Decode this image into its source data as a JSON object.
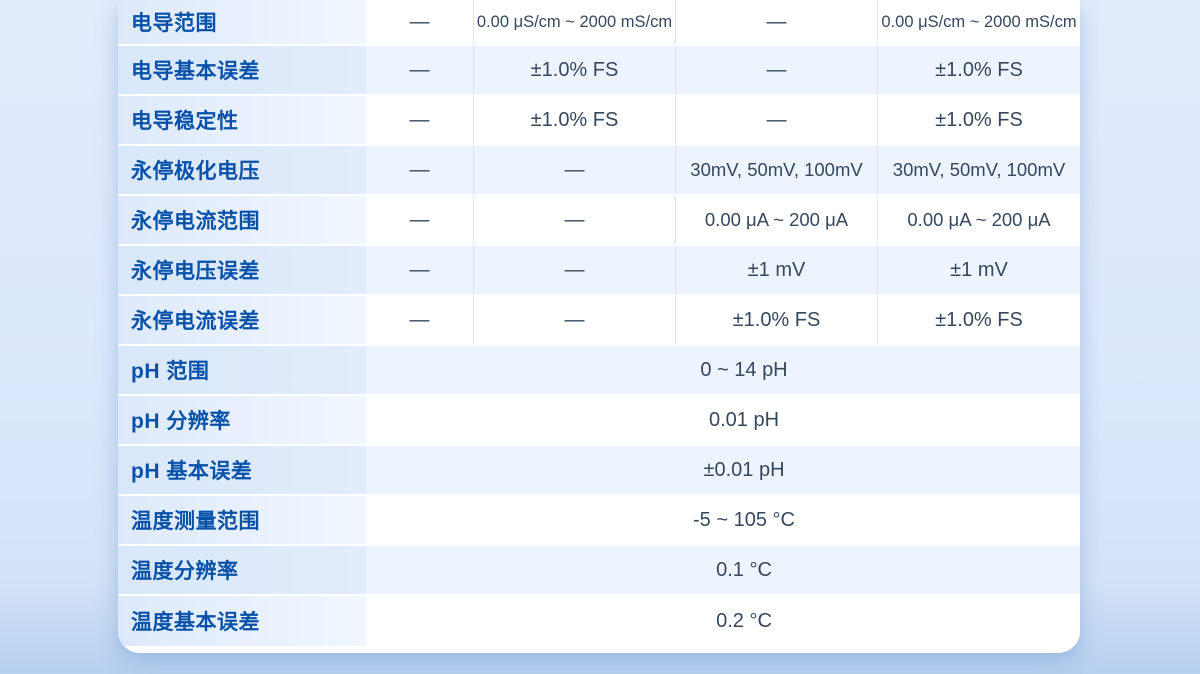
{
  "colors": {
    "label_text": "#0751a8",
    "value_text": "#36485e",
    "row_alt_bg": "#edf4fd",
    "column_border": "#dbe5f4",
    "card_bg": "#ffffff",
    "page_bg_top": "#e2ecfc",
    "page_bg_bottom": "#b7d0ef"
  },
  "spec_table": {
    "rows": [
      {
        "label": "电导范围",
        "cells": [
          "—",
          "0.00 μS/cm ~ 2000 mS/cm",
          "—",
          "0.00 μS/cm ~ 2000 mS/cm"
        ]
      },
      {
        "label": "电导基本误差",
        "cells": [
          "—",
          "±1.0% FS",
          "—",
          "±1.0% FS"
        ]
      },
      {
        "label": "电导稳定性",
        "cells": [
          "—",
          "±1.0% FS",
          "—",
          "±1.0% FS"
        ]
      },
      {
        "label": "永停极化电压",
        "cells": [
          "—",
          "—",
          "30mV, 50mV, 100mV",
          "30mV, 50mV, 100mV"
        ]
      },
      {
        "label": "永停电流范围",
        "cells": [
          "—",
          "—",
          "0.00 μA ~ 200 μA",
          "0.00 μA ~ 200 μA"
        ]
      },
      {
        "label": "永停电压误差",
        "cells": [
          "—",
          "—",
          "±1 mV",
          "±1 mV"
        ]
      },
      {
        "label": "永停电流误差",
        "cells": [
          "—",
          "—",
          "±1.0% FS",
          "±1.0% FS"
        ]
      },
      {
        "label": "pH 范围",
        "span": "0 ~ 14 pH"
      },
      {
        "label": "pH 分辨率",
        "span": "0.01 pH"
      },
      {
        "label": "pH 基本误差",
        "span": "±0.01 pH"
      },
      {
        "label": "温度测量范围",
        "span": "-5 ~ 105 °C"
      },
      {
        "label": "温度分辨率",
        "span": "0.1 °C"
      },
      {
        "label": "温度基本误差",
        "span": "0.2 °C"
      }
    ]
  }
}
